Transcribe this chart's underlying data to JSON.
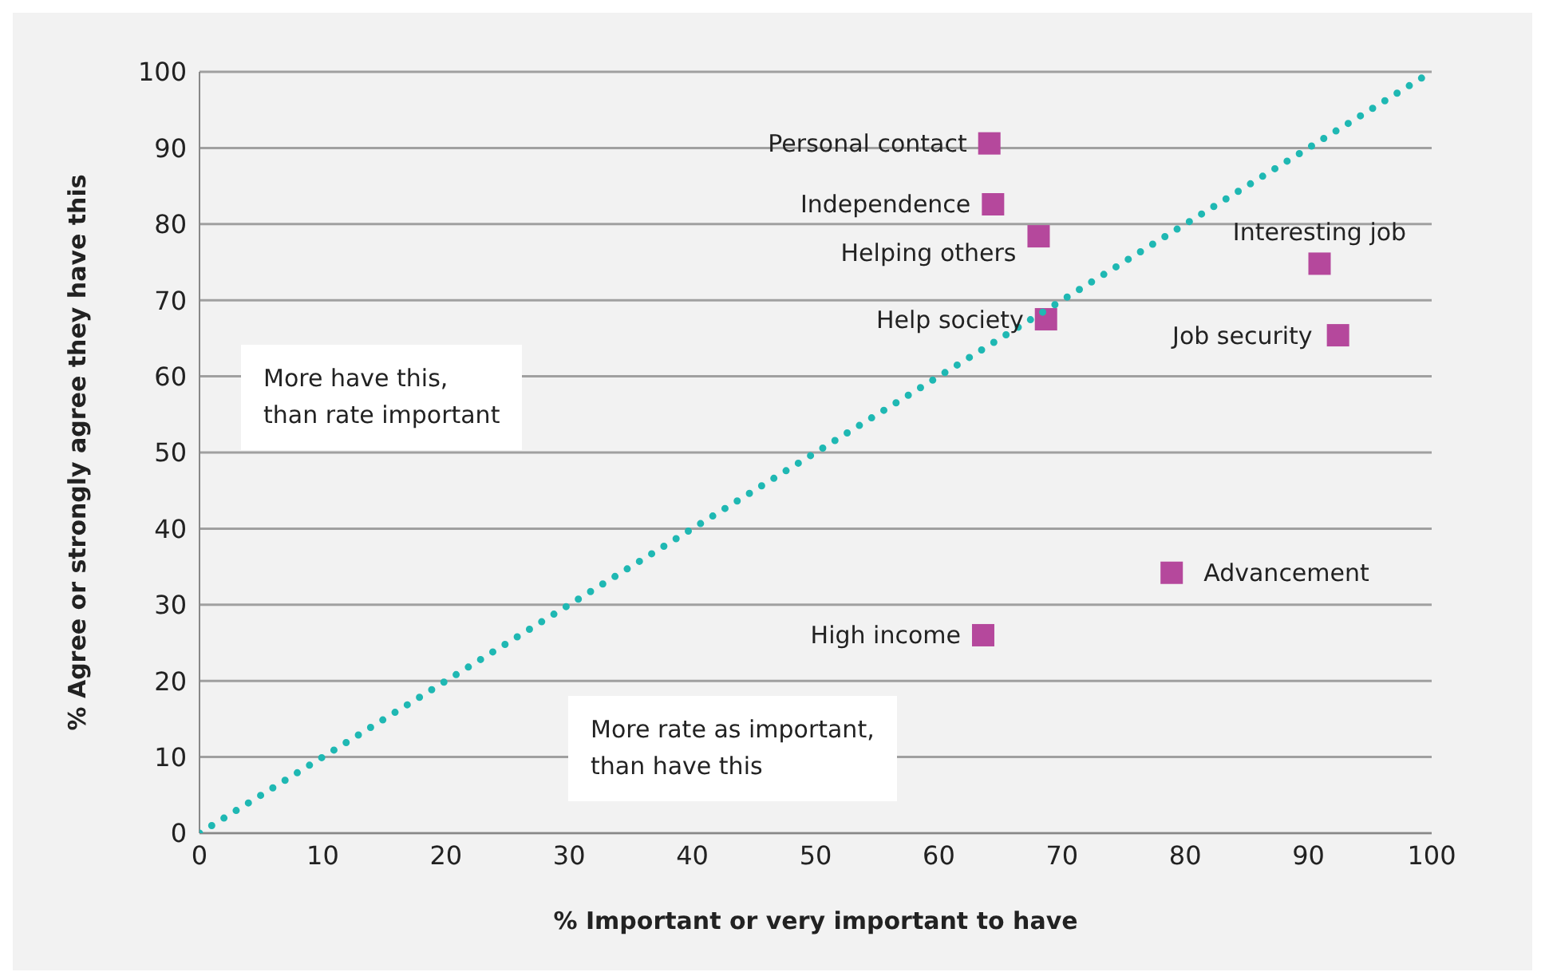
{
  "chart_data": {
    "type": "scatter",
    "xlabel": "% Important or very important to have",
    "ylabel": "% Agree or strongly agree they have this",
    "xlim": [
      0,
      100
    ],
    "xticks": [
      0,
      10,
      20,
      30,
      40,
      50,
      60,
      70,
      80,
      90,
      100
    ],
    "ylim": [
      0,
      100
    ],
    "yticks": [
      0,
      10,
      20,
      30,
      40,
      50,
      60,
      70,
      80,
      90,
      100
    ],
    "grid": "y",
    "marker": "square",
    "series": [
      {
        "color": "#b5489c",
        "x": [
          64.1,
          64.4,
          68.1,
          68.7,
          90.9,
          92.4,
          78.9,
          63.6
        ],
        "values": [
          90.6,
          82.6,
          78.4,
          67.5,
          74.8,
          65.4,
          34.2,
          26.0
        ]
      },
      {
        "type": "line",
        "color": "#1fb8b3",
        "line_style": "dotted",
        "marker": "none",
        "x": [
          0,
          100
        ],
        "values": [
          0,
          100
        ]
      }
    ],
    "annotations": [
      {
        "text": "Personal contact",
        "x": 64.1,
        "y": 90.6
      },
      {
        "text": "Independence",
        "x": 64.4,
        "y": 82.6
      },
      {
        "text": "Helping others",
        "x": 68.1,
        "y": 78.4
      },
      {
        "text": "Help society",
        "x": 68.7,
        "y": 67.5
      },
      {
        "text": "Interesting job",
        "x": 90.9,
        "y": 74.8
      },
      {
        "text": "Job security",
        "x": 92.4,
        "y": 65.4
      },
      {
        "text": "Advancement",
        "x": 78.9,
        "y": 34.2
      },
      {
        "text": "High income",
        "x": 63.6,
        "y": 26.0
      },
      "More have this,\nthan rate important",
      "More rate as important,\nthan have this"
    ]
  }
}
